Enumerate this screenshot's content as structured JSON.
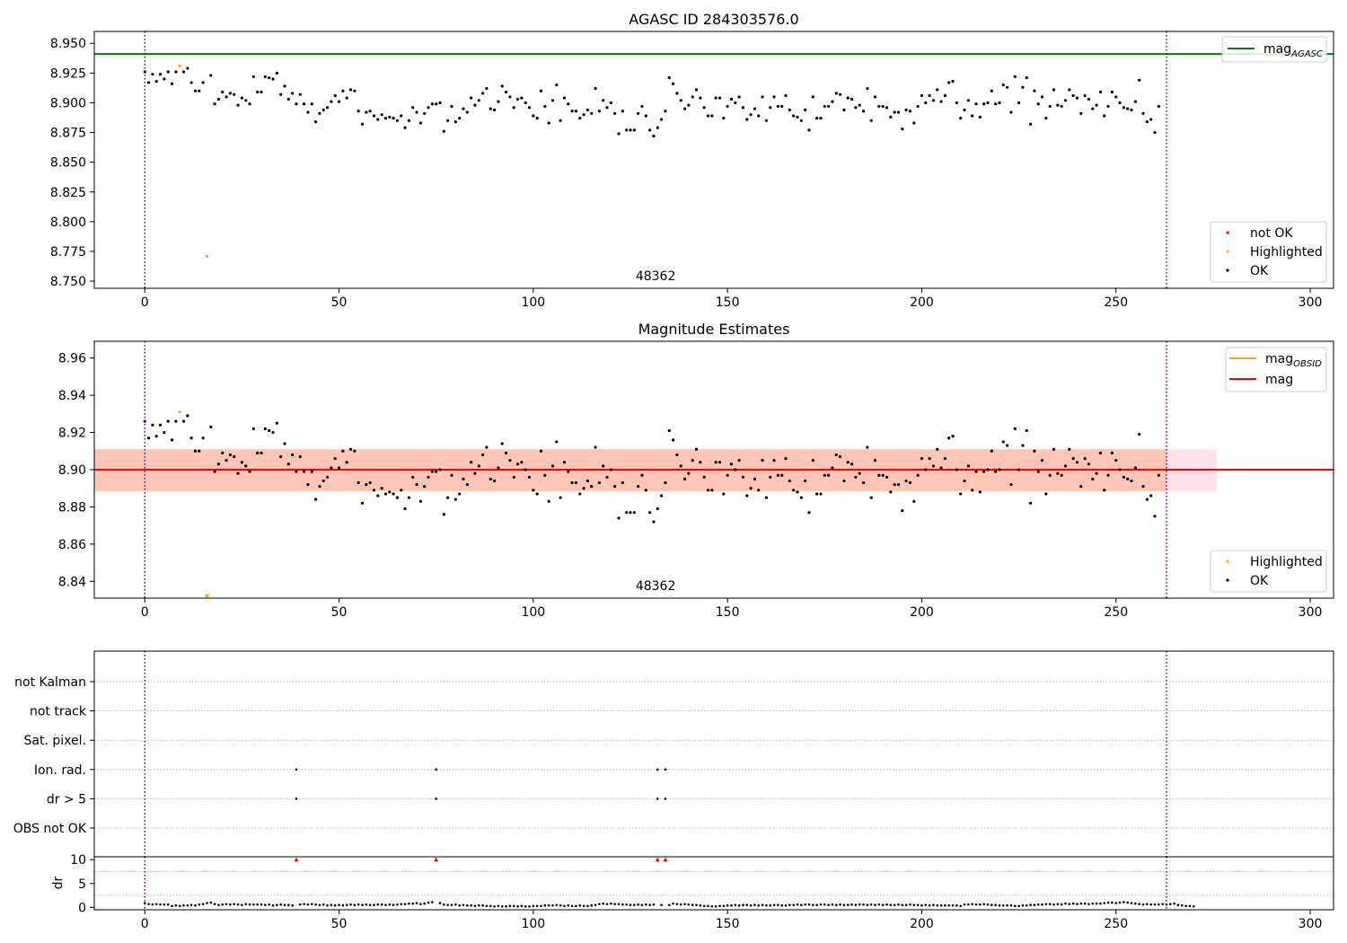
{
  "chart_data": [
    {
      "type": "scatter",
      "title": "AGASC ID 284303576.0",
      "xlim": [
        -13,
        306
      ],
      "ylim": [
        8.744,
        8.96
      ],
      "x_ticks": [
        0,
        50,
        100,
        150,
        200,
        250,
        300
      ],
      "y_ticks": [
        8.75,
        8.775,
        8.8,
        8.825,
        8.85,
        8.875,
        8.9,
        8.925,
        8.95
      ],
      "y_tick_labels": [
        "8.750",
        "8.775",
        "8.800",
        "8.825",
        "8.850",
        "8.875",
        "8.900",
        "8.925",
        "8.950"
      ],
      "hline": {
        "name": "mag",
        "name_subscript": "AGASC",
        "y": 8.941,
        "color": "#008000"
      },
      "vlines": {
        "x": [
          0,
          263
        ],
        "color": "#800080"
      },
      "obsid_label": {
        "text": "48362",
        "x": 131.5
      },
      "legend_lines": [
        {
          "name": "mag",
          "subscript": "AGASC",
          "color": "#008000"
        }
      ],
      "legend_points": [
        {
          "name": "not OK",
          "color": "#ff0000"
        },
        {
          "name": "Highlighted",
          "color": "#ffa500"
        },
        {
          "name": "OK",
          "color": "#000000"
        }
      ],
      "series": [
        {
          "name": "Highlighted",
          "color": "#ffa500",
          "x": [
            9,
            16
          ],
          "y": [
            8.931,
            8.771
          ]
        }
      ]
    },
    {
      "type": "scatter",
      "title": "Magnitude Estimates",
      "xlim": [
        -13,
        306
      ],
      "ylim": [
        8.831,
        8.969
      ],
      "x_ticks": [
        0,
        50,
        100,
        150,
        200,
        250,
        300
      ],
      "y_ticks": [
        8.84,
        8.86,
        8.88,
        8.9,
        8.92,
        8.94,
        8.96
      ],
      "y_tick_labels": [
        "8.84",
        "8.86",
        "8.88",
        "8.90",
        "8.92",
        "8.94",
        "8.96"
      ],
      "mag_line": {
        "name": "mag",
        "y": 8.9,
        "color": "#ff0000"
      },
      "obsid_line": {
        "name": "mag",
        "subscript": "OBSID",
        "y": 8.9,
        "color": "#ffa500"
      },
      "bands": [
        {
          "x_range": [
            -13,
            276
          ],
          "y_range": [
            8.8885,
            8.911
          ],
          "color": "#ffc0cb"
        },
        {
          "x_range": [
            -13,
            263
          ],
          "y_range": [
            8.8885,
            8.911
          ],
          "color": "#ffa07a"
        }
      ],
      "vlines": {
        "x": [
          0,
          263
        ],
        "color": "#800080"
      },
      "obsid_label": {
        "text": "48362",
        "x": 131.5
      },
      "legend_lines": [
        {
          "name": "mag",
          "subscript": "OBSID",
          "color": "#ffa500"
        },
        {
          "name": "mag",
          "subscript": "",
          "color": "#ff0000"
        }
      ],
      "legend_points": [
        {
          "name": "Highlighted",
          "color": "#ffa500"
        },
        {
          "name": "OK",
          "color": "#000000"
        }
      ],
      "series": [
        {
          "name": "Highlighted",
          "color": "#ffa500",
          "x": [
            9
          ],
          "y": [
            8.931
          ]
        },
        {
          "name": "Highlighted (below axis)",
          "color": "#ffa500",
          "marker": "triangle-down",
          "x": [
            16
          ],
          "y": [
            8.832
          ]
        }
      ]
    },
    {
      "type": "scatter",
      "title": "",
      "xlim": [
        -13,
        306
      ],
      "flag_rows": [
        "not Kalman",
        "not track",
        "Sat. pixel.",
        "Ion. rad.",
        "dr > 5",
        "OBS not OK"
      ],
      "flags": {
        "Ion. rad.": [
          39,
          75,
          132,
          134
        ],
        "dr > 5": [
          39,
          75,
          132,
          134
        ]
      },
      "vlines": {
        "x": [
          0,
          263
        ],
        "color": "#800080"
      }
    },
    {
      "type": "scatter",
      "title": "",
      "xlim": [
        -13,
        306
      ],
      "ylim": [
        -0.5,
        10.6
      ],
      "ylabel": "dr",
      "x_ticks": [
        0,
        50,
        100,
        150,
        200,
        250,
        300
      ],
      "y_ticks": [
        0,
        5,
        10
      ],
      "clipped_points": {
        "color": "#ff0000",
        "x": [
          39,
          75,
          132,
          134
        ],
        "y": 10
      },
      "vlines": {
        "x": [
          0,
          263
        ],
        "color": "#800080"
      }
    }
  ],
  "main_series": {
    "name": "OK",
    "color": "#000000",
    "mag": [
      8.926,
      8.917,
      8.924,
      8.918,
      8.924,
      8.92,
      8.926,
      8.916,
      8.926,
      8.931,
      8.926,
      8.929,
      8.917,
      8.91,
      8.91,
      8.917,
      8.771,
      8.923,
      8.899,
      8.903,
      8.909,
      8.905,
      8.908,
      8.907,
      8.898,
      8.904,
      8.902,
      8.899,
      8.922,
      8.909,
      8.909,
      8.922,
      8.921,
      8.92,
      8.925,
      8.907,
      8.914,
      8.903,
      8.908,
      8.899,
      8.907,
      8.899,
      8.892,
      8.899,
      8.884,
      8.891,
      8.894,
      8.896,
      8.901,
      8.906,
      8.901,
      8.91,
      8.904,
      8.911,
      8.91,
      8.893,
      8.882,
      8.892,
      8.893,
      8.889,
      8.886,
      8.89,
      8.887,
      8.888,
      8.887,
      8.885,
      8.889,
      8.879,
      8.885,
      8.896,
      8.892,
      8.883,
      8.891,
      8.896,
      8.899,
      8.899,
      8.9,
      8.876,
      8.885,
      8.897,
      8.884,
      8.887,
      8.895,
      8.892,
      8.904,
      8.898,
      8.902,
      8.908,
      8.912,
      8.895,
      8.894,
      8.901,
      8.914,
      8.909,
      8.905,
      8.896,
      8.903,
      8.904,
      8.9,
      8.896,
      8.889,
      8.887,
      8.91,
      8.897,
      8.883,
      8.902,
      8.915,
      8.885,
      8.904,
      8.899,
      8.893,
      8.893,
      8.887,
      8.89,
      8.894,
      8.891,
      8.912,
      8.893,
      8.902,
      8.896,
      8.9,
      8.891,
      8.874,
      8.893,
      8.877,
      8.877,
      8.877,
      8.891,
      8.897,
      8.889,
      8.877,
      8.872,
      8.879,
      8.886,
      8.893,
      8.921,
      8.916,
      8.908,
      8.902,
      8.895,
      8.898,
      8.905,
      8.911,
      8.904,
      8.896,
      8.889,
      8.889,
      8.904,
      8.904,
      8.887,
      8.897,
      8.903,
      8.9,
      8.905,
      8.896,
      8.886,
      8.89,
      8.895,
      8.889,
      8.905,
      8.885,
      8.896,
      8.905,
      8.897,
      8.897,
      8.906,
      8.894,
      8.889,
      8.888,
      8.885,
      8.894,
      8.877,
      8.905,
      8.887,
      8.887,
      8.897,
      8.897,
      8.901,
      8.908,
      8.907,
      8.894,
      8.904,
      8.903,
      8.896,
      8.898,
      8.893,
      8.912,
      8.885,
      8.905,
      8.897,
      8.897,
      8.896,
      8.888,
      8.892,
      8.892,
      8.878,
      8.894,
      8.893,
      8.883,
      8.897,
      8.906,
      8.9,
      8.906,
      8.902,
      8.911,
      8.901,
      8.906,
      8.917,
      8.918,
      8.9,
      8.887,
      8.894,
      8.902,
      8.889,
      8.899,
      8.888,
      8.899,
      8.9,
      8.91,
      8.899,
      8.9,
      8.915,
      8.913,
      8.892,
      8.922,
      8.9,
      8.913,
      8.921,
      8.882,
      8.91,
      8.899,
      8.905,
      8.887,
      8.897,
      8.911,
      8.898,
      8.897,
      8.902,
      8.911,
      8.906,
      8.904,
      8.891,
      8.906,
      8.903,
      8.895,
      8.898,
      8.909,
      8.889,
      8.897,
      8.909,
      8.905,
      8.9,
      8.896,
      8.895,
      8.894,
      8.901,
      8.919,
      8.891,
      8.884,
      8.886,
      8.875,
      8.897
    ],
    "dr": [
      0.9,
      0.7,
      0.6,
      0.7,
      0.6,
      0.6,
      0.6,
      0.3,
      0.4,
      0.3,
      0.4,
      0.4,
      0.5,
      0.4,
      0.6,
      0.7,
      0.9,
      1.0,
      0.7,
      0.5,
      0.6,
      0.7,
      0.6,
      0.7,
      0.6,
      0.5,
      0.7,
      0.6,
      0.6,
      0.6,
      0.6,
      0.5,
      0.6,
      0.4,
      0.5,
      0.6,
      0.5,
      0.5,
      0.4,
      10,
      0.6,
      0.7,
      0.6,
      0.7,
      0.6,
      0.5,
      0.6,
      0.4,
      0.5,
      0.4,
      0.5,
      0.4,
      0.5,
      0.6,
      0.5,
      0.6,
      0.5,
      0.6,
      0.5,
      0.5,
      0.6,
      0.6,
      0.5,
      0.6,
      0.5,
      0.6,
      0.7,
      0.7,
      0.8,
      0.8,
      0.9,
      0.7,
      0.8,
      1.0,
      1.1,
      10,
      0.9,
      0.6,
      0.5,
      0.5,
      0.6,
      0.4,
      0.5,
      0.4,
      0.4,
      0.3,
      0.4,
      0.4,
      0.3,
      0.3,
      0.2,
      0.3,
      0.2,
      0.2,
      0.3,
      0.3,
      0.2,
      0.3,
      0.2,
      0.2,
      0.3,
      0.3,
      0.3,
      0.4,
      0.4,
      0.4,
      0.5,
      0.4,
      0.3,
      0.4,
      0.3,
      0.3,
      0.4,
      0.3,
      0.3,
      0.4,
      0.5,
      0.7,
      0.8,
      0.7,
      0.8,
      0.7,
      0.7,
      0.6,
      0.6,
      0.5,
      0.5,
      0.6,
      0.5,
      0.6,
      0.5,
      0.6,
      10,
      0.5,
      10,
      0.5,
      0.8,
      0.7,
      0.6,
      0.7,
      0.6,
      0.5,
      0.5,
      0.4,
      0.3,
      0.3,
      0.2,
      0.2,
      0.3,
      0.3,
      0.4,
      0.4,
      0.5,
      0.4,
      0.5,
      0.5,
      0.4,
      0.5,
      0.4,
      0.5,
      0.4,
      0.4,
      0.5,
      0.5,
      0.4,
      0.4,
      0.5,
      0.5,
      0.6,
      0.5,
      0.6,
      0.6,
      0.5,
      0.5,
      0.6,
      0.6,
      0.5,
      0.6,
      0.5,
      0.6,
      0.5,
      0.5,
      0.6,
      0.5,
      0.6,
      0.6,
      0.5,
      0.6,
      0.5,
      0.6,
      0.5,
      0.6,
      0.5,
      0.5,
      0.6,
      0.5,
      0.5,
      0.6,
      0.5,
      0.5,
      0.4,
      0.5,
      0.4,
      0.5,
      0.4,
      0.4,
      0.4,
      0.4,
      0.4,
      0.4,
      0.3,
      0.6,
      0.6,
      0.7,
      0.6,
      0.6,
      0.7,
      0.6,
      0.5,
      0.5,
      0.4,
      0.4,
      0.4,
      0.4,
      0.3,
      0.3,
      0.4,
      0.4,
      0.5,
      0.5,
      0.6,
      0.6,
      0.7,
      0.7,
      0.6,
      0.7,
      0.6,
      0.8,
      0.7,
      0.8,
      0.7,
      0.8,
      0.8,
      0.7,
      0.8,
      0.8,
      0.8,
      0.9,
      1.0,
      1.0,
      0.9,
      1.0,
      1.1,
      1.0,
      0.9,
      0.8,
      0.7,
      0.6,
      0.7,
      0.6,
      0.6,
      0.6,
      0.7,
      0.6,
      0.7,
      0.8,
      0.5,
      0.4,
      0.3,
      0.3,
      0.2
    ]
  }
}
